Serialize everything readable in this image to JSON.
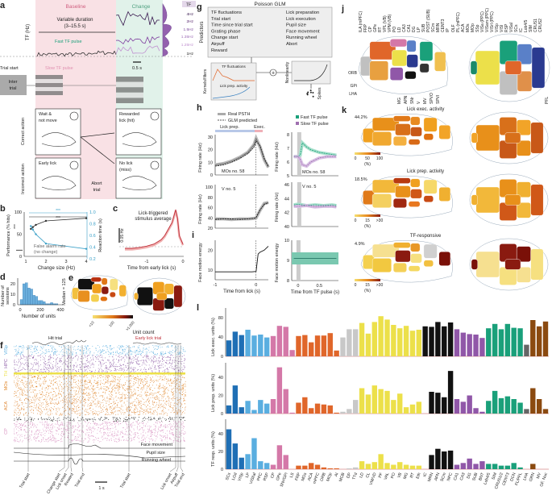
{
  "colors": {
    "baseline_bg": "#f9e1e5",
    "change_bg": "#e1f2ea",
    "fast": "#1aa07a",
    "slow": "#a070b0",
    "dark_blue": "#1f6fb5",
    "light_blue": "#5aaee0",
    "pink": "#d478a8",
    "orange": "#e0662a",
    "gray": "#c8c8c8",
    "yellow": "#ece04a",
    "black": "#111111",
    "purple": "#9057a8",
    "green": "#1aa07a",
    "dark_gray": "#666666",
    "brown": "#8b4a10",
    "red": "#c0303a"
  },
  "a": {
    "label": "a",
    "baseline": "Baseline",
    "change": "Change",
    "duration": "Variable duration",
    "duration_range": "(3–15.5 s)",
    "tf_axis": "TF (Hz)",
    "fast_pulse": "Fast TF pulse",
    "slow_pulse": "Slow TF pulse",
    "trial_start": "Trial start",
    "scale": "0.5 s",
    "inter_trial": [
      "Inter",
      "trial"
    ],
    "correct_action": "Correct action",
    "incorrect_action": "Incorrect action",
    "wait": [
      "Wait &",
      "not move"
    ],
    "rewarded": [
      "Rewarded",
      "lick (hit)"
    ],
    "early": [
      "Early lick"
    ],
    "abort": [
      "Abort",
      "trial"
    ],
    "nolick": [
      "No lick",
      "(miss)"
    ],
    "tf_legend_title": "TF",
    "tf_levels": [
      "4Hz",
      "2Hz",
      "1.5Hz",
      "1.35Hz",
      "1.25Hz",
      "1Hz"
    ]
  },
  "chart_data": [
    {
      "panel": "b",
      "type": "line",
      "xlabel": "Change size (Hz)",
      "ylabel": "Performance (% hits)",
      "y2label": "Reaction time (s)",
      "xlim": [
        1,
        4
      ],
      "ylim": [
        0,
        100
      ],
      "y2lim": [
        0.2,
        1.0
      ],
      "xticks": [
        "1",
        "2",
        "3",
        "4"
      ],
      "yticks": [
        "0",
        "50",
        "100"
      ],
      "y2ticks": [
        "0.2",
        "0.4",
        "0.6",
        "0.8",
        "1.0"
      ],
      "x": [
        1.25,
        1.35,
        1.5,
        2,
        4
      ],
      "series": [
        {
          "axis": "left",
          "color": "#333333",
          "values": [
            62,
            66,
            71,
            80,
            86
          ]
        },
        {
          "axis": "right",
          "color": "#3aa0c8",
          "values": [
            0.76,
            0.7,
            0.62,
            0.46,
            0.37
          ]
        }
      ],
      "false_alarm_rate": 14,
      "annotations": [
        "***",
        "***",
        "False alarm rate",
        "(no change)",
        "***"
      ]
    },
    {
      "panel": "c",
      "type": "line",
      "title": [
        "Lick-triggered",
        "stimulus average"
      ],
      "xlabel": "Time from early lick (s)",
      "xticks": [
        "-1",
        "0"
      ],
      "scalebar": "0.05 Hz",
      "x": [
        -1.6,
        -1.4,
        -1.2,
        -1.0,
        -0.8,
        -0.6,
        -0.5,
        -0.4,
        -0.3,
        -0.25,
        -0.2,
        -0.15,
        -0.1,
        0
      ],
      "values": [
        0,
        0,
        0.002,
        0.005,
        0.01,
        0.02,
        0.03,
        0.045,
        0.06,
        0.075,
        0.09,
        0.07,
        0.03,
        0.01
      ]
    },
    {
      "panel": "d",
      "type": "bar",
      "xlabel": "Number of units",
      "ylabel": [
        "Number of",
        "sessions"
      ],
      "annotation": "Median = 125",
      "xticks": [
        "0",
        "200",
        "400"
      ],
      "yticks": [
        "0",
        "10",
        "20"
      ],
      "bin_width": 25,
      "values": [
        5,
        20,
        21,
        16,
        15,
        9,
        8,
        4,
        4,
        3,
        1,
        1,
        2,
        1,
        1
      ]
    },
    {
      "panel": "h",
      "type": "line",
      "legend": [
        "Real PSTH",
        "GLM predicted"
      ],
      "epochs": [
        "Lick prep.",
        "Exec."
      ],
      "pulse_legend": [
        "Fast TF pulse",
        "Slow TF pulse"
      ],
      "ylabel": "Firing rate (Hz)",
      "plots": [
        {
          "unit": "MOs no. 58",
          "yticks": [
            "0",
            "10",
            "20",
            "30"
          ],
          "ylim": [
            0,
            30
          ],
          "x": [
            -1,
            -0.8,
            -0.6,
            -0.4,
            -0.2,
            -0.05,
            0,
            0.1,
            0.2,
            0.3
          ],
          "series": [
            {
              "values": [
                8,
                9,
                11,
                14,
                18,
                24,
                29,
                22,
                12,
                6
              ]
            },
            {
              "values": [
                7,
                8,
                10,
                13,
                17,
                22,
                27,
                23,
                13,
                7
              ]
            }
          ]
        },
        {
          "unit": "MOs no. 58",
          "yticks": [
            "5",
            "6",
            "7",
            "8"
          ],
          "ylim": [
            5,
            8
          ],
          "x": [
            -0.1,
            0,
            0.05,
            0.1,
            0.2,
            0.3,
            0.5,
            0.7,
            0.9
          ],
          "series": [
            {
              "name": "Fast TF pulse",
              "values": [
                6.4,
                6.4,
                6.5,
                7.4,
                7.1,
                6.9,
                6.7,
                6.6,
                6.5
              ]
            },
            {
              "name": "Slow TF pulse",
              "values": [
                6.4,
                6.4,
                6.2,
                5.8,
                5.7,
                6.0,
                6.3,
                6.4,
                6.4
              ]
            }
          ]
        },
        {
          "unit": "V no. 5",
          "yticks": [
            "20",
            "40",
            "60",
            "80",
            "100"
          ],
          "ylim": [
            20,
            100
          ],
          "x": [
            -1,
            -0.8,
            -0.6,
            -0.4,
            -0.2,
            -0.05,
            0,
            0.1,
            0.2,
            0.3
          ],
          "series": [
            {
              "values": [
                38,
                38,
                37,
                38,
                38,
                39,
                40,
                55,
                68,
                70
              ]
            },
            {
              "values": [
                37,
                38,
                38,
                37,
                38,
                39,
                41,
                56,
                66,
                69
              ]
            }
          ]
        },
        {
          "unit": "V no. 5",
          "yticks": [
            "40",
            "42",
            "44",
            "46"
          ],
          "ylim": [
            40,
            46
          ],
          "x": [
            -0.1,
            0,
            0.2,
            0.4,
            0.6,
            0.8,
            0.9
          ],
          "series": [
            {
              "name": "Fast TF pulse",
              "values": [
                43.1,
                43.2,
                43.0,
                43.1,
                43.0,
                43.1,
                43.0
              ]
            },
            {
              "name": "Slow TF pulse",
              "values": [
                42.9,
                42.9,
                43.0,
                42.8,
                42.9,
                42.9,
                42.8
              ]
            }
          ]
        }
      ]
    },
    {
      "panel": "i",
      "type": "line",
      "ylabel": "Face motion energy",
      "plots": [
        {
          "xlabel": "Time from lick (s)",
          "xticks": [
            "-1",
            "0"
          ],
          "yticks": [
            "10",
            "20"
          ],
          "ylim": [
            5,
            25
          ],
          "x": [
            -1,
            -0.5,
            -0.1,
            0,
            0.05,
            0.1,
            0.2,
            0.3
          ],
          "values": [
            9,
            9,
            9,
            9.2,
            18,
            19,
            20,
            22
          ]
        },
        {
          "xlabel": "Time from TF pulse (s)",
          "xticks": [
            "0",
            "0.5"
          ],
          "yticks": [
            "8",
            "9",
            "10"
          ],
          "ylim": [
            8,
            10
          ],
          "x": [
            -0.1,
            0.9
          ],
          "values": [
            9.1,
            9.1
          ],
          "band": [
            8.8,
            9.4
          ]
        }
      ]
    },
    {
      "panel": "l",
      "type": "bar",
      "ylabels": [
        "Lick exec. units (%)",
        "Lick prep. units (%)",
        "TF resp. units (%)"
      ],
      "yticks": [
        [
          "0",
          "40",
          "80"
        ],
        [
          "0",
          "20",
          "40"
        ],
        [
          "0",
          "20",
          "40"
        ]
      ],
      "categories": [
        "SCs",
        "LGd",
        "VISp",
        "LP",
        "VISl/al",
        "PPC",
        "RSP",
        "CP",
        "GPe",
        "SNr/GPi",
        "LS",
        "FRP",
        "MOs",
        "ACA",
        "mPFC",
        "ORB",
        "MOp",
        "AI",
        "MOB",
        "DP",
        "TTd",
        "LD",
        "CL",
        "VM/VD",
        "PF",
        "VAL",
        "PO",
        "VB",
        "MG",
        "RT",
        "Eth",
        "IC",
        "MRN",
        "APN",
        "SCm",
        "NPC",
        "CA1",
        "CA3",
        "DG",
        "SUB",
        "BNT",
        "Lob4/5",
        "SIM",
        "CRUS1/2",
        "CENT3",
        "DCN",
        "FL/PFL",
        "LHA",
        "GRN",
        "MV",
        "OF. Nuc"
      ],
      "groups": [
        "dark_blue",
        "dark_blue",
        "dark_blue",
        "light_blue",
        "light_blue",
        "light_blue",
        "light_blue",
        "pink",
        "pink",
        "pink",
        "pink",
        "orange",
        "orange",
        "orange",
        "orange",
        "orange",
        "orange",
        "orange",
        "gray",
        "gray",
        "gray",
        "yellow",
        "yellow",
        "yellow",
        "yellow",
        "yellow",
        "yellow",
        "yellow",
        "yellow",
        "yellow",
        "yellow",
        "black",
        "black",
        "black",
        "black",
        "black",
        "purple",
        "purple",
        "purple",
        "purple",
        "purple",
        "green",
        "green",
        "green",
        "green",
        "green",
        "green",
        "dark_gray",
        "brown",
        "brown",
        "brown"
      ],
      "series": [
        {
          "values": [
            33,
            51,
            44,
            55,
            43,
            45,
            39,
            42,
            63,
            61,
            13,
            42,
            44,
            29,
            43,
            43,
            48,
            12,
            39,
            56,
            56,
            69,
            47,
            71,
            83,
            76,
            65,
            58,
            63,
            53,
            55,
            62,
            61,
            71,
            62,
            70,
            56,
            49,
            46,
            45,
            38,
            58,
            67,
            56,
            67,
            59,
            58,
            24,
            75,
            62,
            72
          ]
        },
        {
          "values": [
            9,
            31,
            7,
            14,
            4,
            15,
            11,
            16,
            51,
            27,
            1,
            12,
            18,
            6,
            11,
            10,
            9,
            1,
            2,
            5,
            15,
            28,
            21,
            31,
            27,
            25,
            15,
            22,
            7,
            10,
            13,
            0,
            24,
            23,
            18,
            47,
            16,
            13,
            20,
            6,
            2,
            14,
            25,
            17,
            19,
            16,
            12,
            5,
            28,
            16,
            5
          ]
        },
        {
          "values": [
            45,
            29,
            13,
            17,
            35,
            9,
            7,
            5,
            27,
            16,
            0,
            4,
            4,
            7,
            5,
            2,
            1,
            1,
            0,
            1,
            2,
            9,
            6,
            8,
            17,
            7,
            5,
            8,
            5,
            4,
            4,
            0,
            16,
            23,
            20,
            21,
            5,
            7,
            12,
            6,
            9,
            6,
            6,
            4,
            4,
            7,
            2,
            0,
            6,
            0,
            0
          ]
        }
      ]
    }
  ],
  "e": {
    "label": "e",
    "colorbar_title": "Unit count",
    "ticks": [
      "<10",
      "100",
      ">1,000"
    ]
  },
  "f": {
    "label": "f",
    "hit_trial": "Hit trial",
    "early_trial": "Early lick trial",
    "regions": [
      "VISp",
      "HPC",
      "TH",
      "MOs",
      "ACA",
      "CP"
    ],
    "traces": [
      "Face movement",
      "Pupil size",
      "Running wheel"
    ],
    "events": [
      "Trial start",
      "Change start",
      "Lick onset",
      "Reward",
      "Trial end",
      "Trial start",
      "Lick onset",
      "Airpuff",
      "Trial end"
    ],
    "scale": "1 s"
  },
  "g": {
    "label": "g",
    "title": "Poisson GLM",
    "predictors_label": "Predictors",
    "predictors_left": [
      "TF fluctuations",
      "Trial start",
      "Time since trial start",
      "Grating phase",
      "Change start",
      "Airpuff",
      "Reward"
    ],
    "predictors_right": [
      "Lick preparation",
      "Lick execution",
      "Pupil size",
      "Face movement",
      "Running wheel",
      "Abort"
    ],
    "kernels_label": "Kernels/filters",
    "kernel1": "TF fluctuations",
    "kernel2": "Lick prep. activity",
    "nonlinearity": "Nonlinearity",
    "spikes": "Spikes",
    "plus": "+"
  },
  "h": {
    "label": "h"
  },
  "i": {
    "label": "i"
  },
  "j": {
    "label": "j",
    "sagittal_top": [
      "ILA (mPFC)",
      "FRP",
      "CP",
      "GPe",
      "RT",
      "VPL (VB)",
      "VPM (VB)",
      "PO",
      "LD",
      "CA3",
      "CA1",
      "DG",
      "LP",
      "SUB",
      "POST (SUB)",
      "SCm",
      "MRN",
      "CENT3",
      "IP"
    ],
    "sagittal_bottom": [
      "ORB",
      "GPi",
      "LHA",
      "MG",
      "APN",
      "SNr",
      "V",
      "MV",
      "SPVO",
      "SPVI"
    ],
    "top_view": [
      "OLF",
      "PL (mPFC)",
      "ACA",
      "MOs",
      "MOp",
      "SSp",
      "VISa (PPC)",
      "VISam (PPC)",
      "VISrl (PPC)",
      "VISp",
      "VISl",
      "RSP",
      "VISal",
      "SCs",
      "IC",
      "Lob4/5",
      "SIM",
      "CRUS1",
      "CRUS2",
      "PFL"
    ]
  },
  "k": {
    "label": "k",
    "rows": [
      {
        "title": "Lick exec. activity",
        "percent": "44.2%",
        "cbar": [
          "0",
          "50",
          "100"
        ],
        "unit": "(%)",
        "region_colors": [
          "#f0a020",
          "#e8901a",
          "#f0a830",
          "#e07818",
          "#d8701a",
          "#f4b040",
          "#e88a20",
          "#c85818",
          "#f0a020",
          "#e07010",
          "#f2a428",
          "#d86a18"
        ]
      },
      {
        "title": "Lick prep. activity",
        "percent": "18.5%",
        "cbar": [
          "0",
          "15",
          ">30"
        ],
        "unit": "(%)",
        "region_colors": [
          "#e07a1a",
          "#f2b83a",
          "#f4d060",
          "#b83a10",
          "#e8901a",
          "#a02810",
          "#f0a020",
          "#d05818",
          "#f6d868",
          "#c84a14",
          "#f0b030",
          "#e87820"
        ]
      },
      {
        "title": "TF-responsive",
        "percent": "4.9%",
        "cbar": [
          "0",
          "15",
          ">30"
        ],
        "unit": "(%)",
        "region_colors": [
          "#f4d050",
          "#f6e090",
          "#f2c840",
          "#f0b030",
          "#8a1a10",
          "#f4d058",
          "#e89828",
          "#f6e080",
          "#d0d0d0",
          "#f2c040",
          "#7a1008",
          "#f4d860"
        ]
      }
    ]
  }
}
